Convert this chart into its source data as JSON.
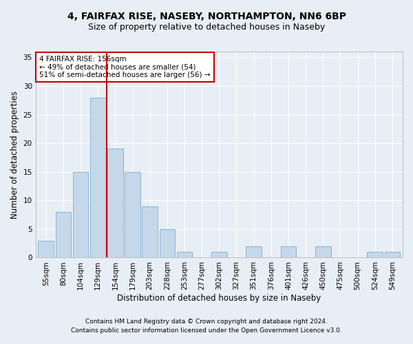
{
  "title1": "4, FAIRFAX RISE, NASEBY, NORTHAMPTON, NN6 6BP",
  "title2": "Size of property relative to detached houses in Naseby",
  "xlabel": "Distribution of detached houses by size in Naseby",
  "ylabel": "Number of detached properties",
  "categories": [
    "55sqm",
    "80sqm",
    "104sqm",
    "129sqm",
    "154sqm",
    "179sqm",
    "203sqm",
    "228sqm",
    "253sqm",
    "277sqm",
    "302sqm",
    "327sqm",
    "351sqm",
    "376sqm",
    "401sqm",
    "426sqm",
    "450sqm",
    "475sqm",
    "500sqm",
    "524sqm",
    "549sqm"
  ],
  "values": [
    3,
    8,
    15,
    28,
    19,
    15,
    9,
    5,
    1,
    0,
    1,
    0,
    2,
    0,
    2,
    0,
    2,
    0,
    0,
    1,
    1
  ],
  "bar_color": "#c5d8ea",
  "bar_edge_color": "#7aaec8",
  "annotation_line1": "4 FAIRFAX RISE: 156sqm",
  "annotation_line2": "← 49% of detached houses are smaller (54)",
  "annotation_line3": "51% of semi-detached houses are larger (56) →",
  "annotation_box_color": "#ffffff",
  "annotation_box_edge": "#cc0000",
  "vline_color": "#cc0000",
  "ylim": [
    0,
    36
  ],
  "yticks": [
    0,
    5,
    10,
    15,
    20,
    25,
    30,
    35
  ],
  "footnote1": "Contains HM Land Registry data © Crown copyright and database right 2024.",
  "footnote2": "Contains public sector information licensed under the Open Government Licence v3.0.",
  "bg_color": "#e8eef5",
  "plot_bg_color": "#e8eef5",
  "title1_fontsize": 10,
  "title2_fontsize": 9,
  "tick_fontsize": 7.5,
  "label_fontsize": 8.5,
  "footnote_fontsize": 6.5
}
